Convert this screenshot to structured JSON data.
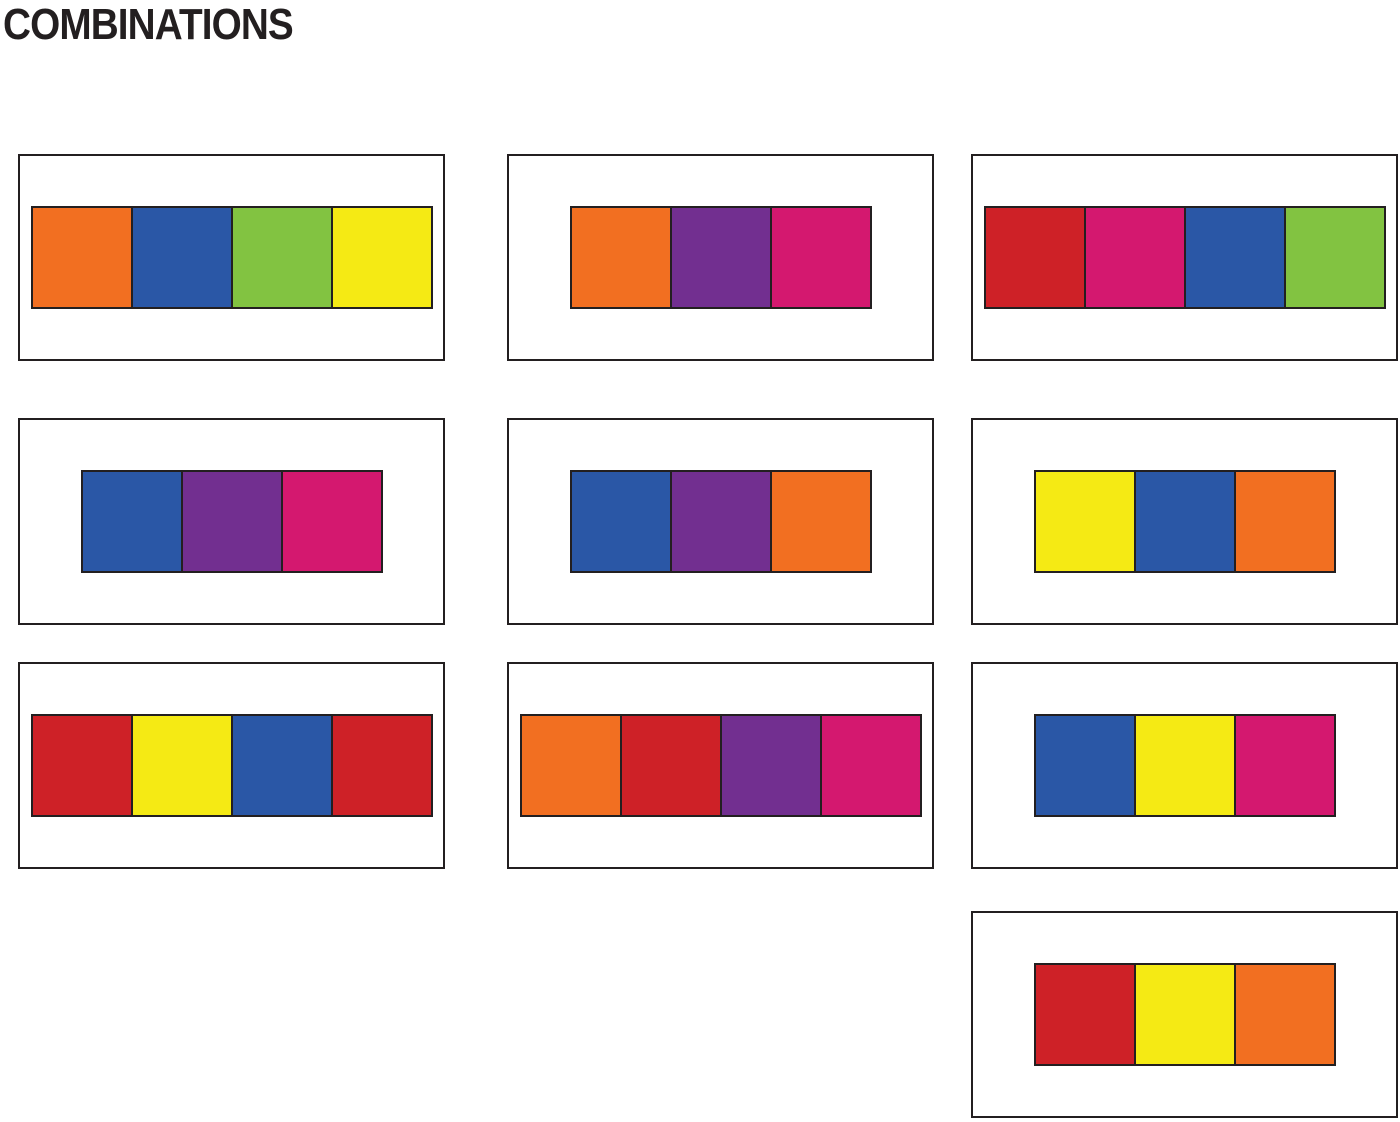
{
  "title": "COMBINATIONS",
  "palette": {
    "orange": "#F26F21",
    "blue": "#2A57A6",
    "green": "#82C341",
    "yellow": "#F5EA14",
    "purple": "#722F90",
    "magenta": "#D4186F",
    "red": "#CE2127",
    "outline": "#231F20",
    "background": "#FFFFFF"
  },
  "boxes": [
    {
      "row": 1,
      "col": 1,
      "swatches": [
        "orange",
        "blue",
        "green",
        "yellow"
      ]
    },
    {
      "row": 1,
      "col": 2,
      "swatches": [
        "orange",
        "purple",
        "magenta"
      ]
    },
    {
      "row": 1,
      "col": 3,
      "swatches": [
        "red",
        "magenta",
        "blue",
        "green"
      ]
    },
    {
      "row": 2,
      "col": 1,
      "swatches": [
        "blue",
        "purple",
        "magenta"
      ]
    },
    {
      "row": 2,
      "col": 2,
      "swatches": [
        "blue",
        "purple",
        "orange"
      ]
    },
    {
      "row": 2,
      "col": 3,
      "swatches": [
        "yellow",
        "blue",
        "orange"
      ]
    },
    {
      "row": 3,
      "col": 1,
      "swatches": [
        "red",
        "yellow",
        "blue",
        "red"
      ]
    },
    {
      "row": 3,
      "col": 2,
      "swatches": [
        "orange",
        "red",
        "purple",
        "magenta"
      ]
    },
    {
      "row": 3,
      "col": 3,
      "swatches": [
        "blue",
        "yellow",
        "magenta"
      ]
    },
    {
      "row": 4,
      "col": 3,
      "swatches": [
        "red",
        "yellow",
        "orange"
      ]
    }
  ]
}
